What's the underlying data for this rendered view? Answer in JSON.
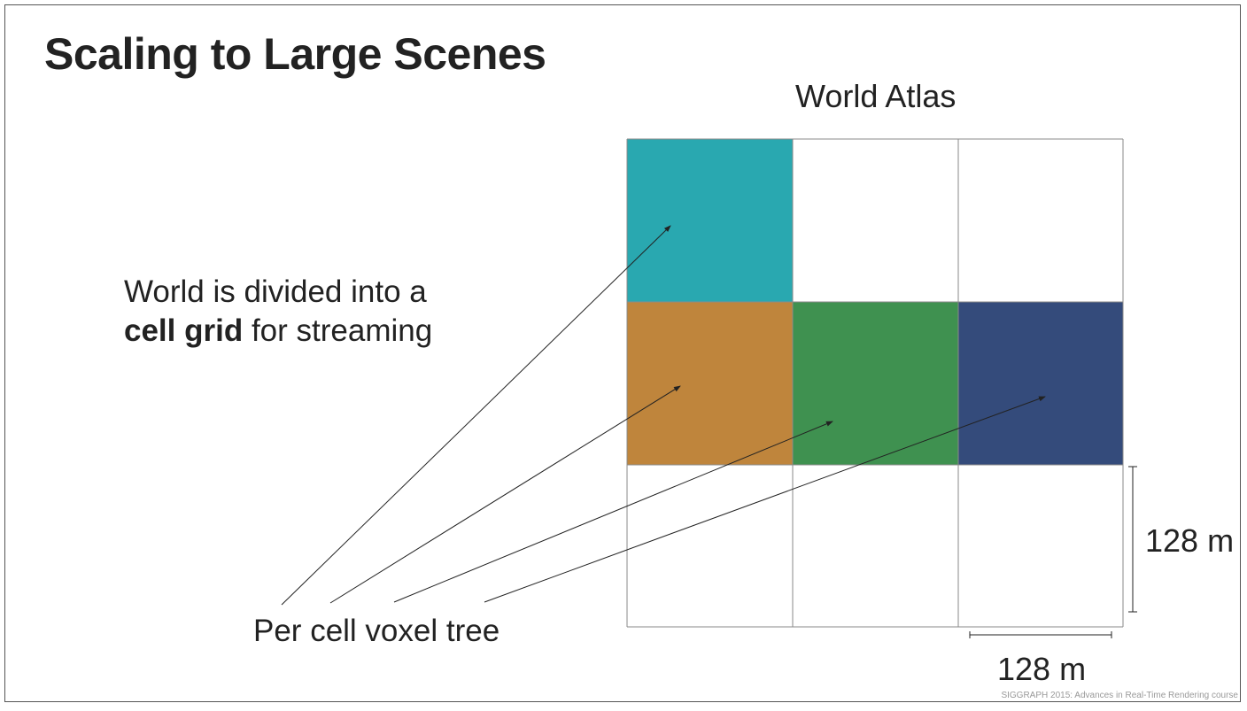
{
  "slide": {
    "title": "Scaling to Large Scenes",
    "atlas_label": "World Atlas",
    "description": {
      "line1": "World is divided into a",
      "bold": "cell grid",
      "line2_rest": " for streaming"
    },
    "voxel_label": "Per cell voxel tree",
    "dimension_vertical": "128 m",
    "dimension_horizontal": "128 m",
    "footer": "SIGGRAPH 2015: Advances in Real-Time Rendering course"
  },
  "grid": {
    "rows": 3,
    "cols": 3,
    "line_color": "#8a8a8a",
    "filled_cells": [
      {
        "row": 0,
        "col": 0,
        "color": "#29a8b0"
      },
      {
        "row": 1,
        "col": 0,
        "color": "#bf853c"
      },
      {
        "row": 1,
        "col": 1,
        "color": "#3f9150"
      },
      {
        "row": 1,
        "col": 2,
        "color": "#344b7b"
      }
    ]
  }
}
